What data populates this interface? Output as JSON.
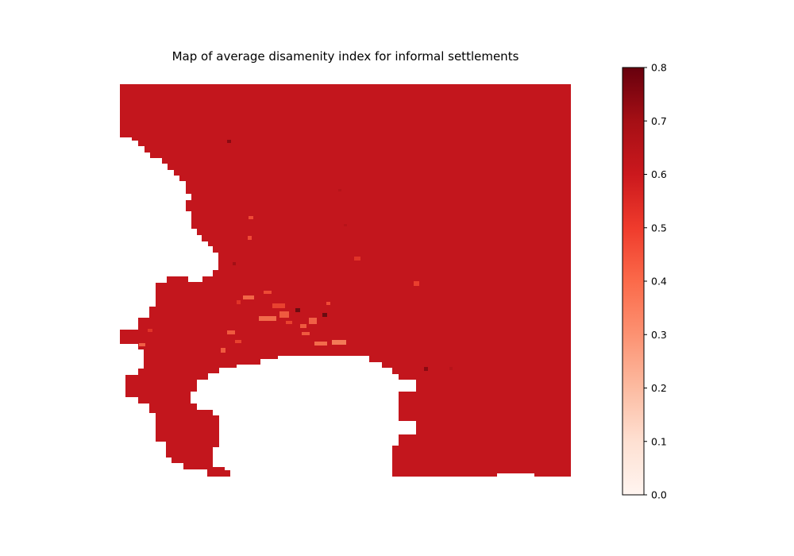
{
  "chart_data": {
    "type": "heatmap",
    "title": "Map of average disamenity index for informal settlements",
    "axes_visible": false,
    "map_fill_color": "#c3161d",
    "colorbar": {
      "colormap": "Reds",
      "range": [
        0.0,
        0.8
      ],
      "ticks": [
        0.0,
        0.1,
        0.2,
        0.3,
        0.4,
        0.5,
        0.6,
        0.7,
        0.8
      ],
      "tick_labels": [
        "0.0",
        "0.1",
        "0.2",
        "0.3",
        "0.4",
        "0.5",
        "0.6",
        "0.7",
        "0.8"
      ],
      "stops": [
        "#fff5f0",
        "#fee0d2",
        "#fcbba1",
        "#fc9272",
        "#fb6a4a",
        "#ef3b2c",
        "#cb181d",
        "#a50f15",
        "#67000d"
      ]
    },
    "dominant_value": 0.6,
    "value_range_observed": [
      0.4,
      0.8
    ]
  }
}
